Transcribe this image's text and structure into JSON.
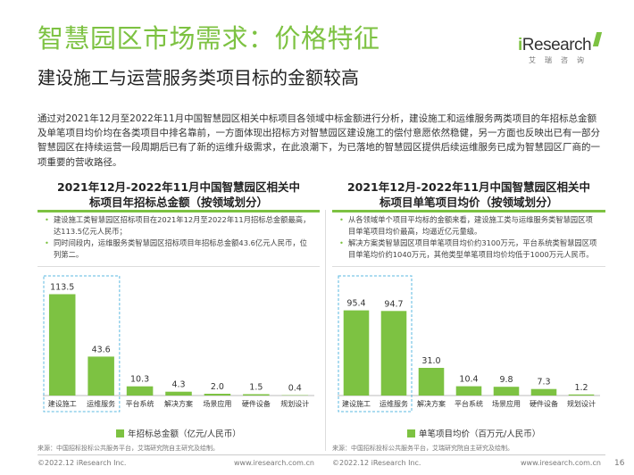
{
  "header": {
    "title": "智慧园区市场需求：价格特征",
    "subtitle": "建设施工与运营服务类项目标的金额较高",
    "logo_main_i": "i",
    "logo_main_rest": "Research",
    "logo_sub": "艾瑞咨询"
  },
  "intro": "通过对2021年12月至2022年11月中国智慧园区相关中标项目各领域中标金额进行分析，建设施工和运维服务两类项目的年招标总金额及单笔项目均价均在各类项目中排名靠前，一方面体现出招标方对智慧园区建设施工的偿付意愿依然稳健，另一方面也反映出已有一部分智慧园区在持续运营一段周期后已有了新的运维升级需求，在此浪潮下，为已落地的智慧园区提供后续运维服务已成为智慧园区厂商的一项重要的营收路径。",
  "panels": [
    {
      "title_line1": "2021年12月-2022年11月中国智慧园区相关中",
      "title_line2": "标项目年招标总金额（按领域划分）",
      "notes": [
        "建设施工类智慧园区招标项目在2021年12月至2022年11月招标总金额最高，达113.5亿元人民币；",
        "同时间段内，运维服务类智慧园区招标项目年招标总金额43.6亿元人民币，位列第二。"
      ],
      "legend": "年招标总金额（亿元/人民币）",
      "source": "来源：中国招标投标公共服务平台，艾瑞研究院自主研究及绘制。"
    },
    {
      "title_line1": "2021年12月-2022年11月中国智慧园区相关中",
      "title_line2": "标项目单笔项目均价（按领域划分）",
      "notes": [
        "从各领域单个项目平均标的金额来看，建设施工类与运维服务类智慧园区项目单笔项目均价最高，均逼近亿元量级。",
        "解决方案类智慧园区项目单笔项目均价约3100万元，平台系统类智慧园区项目单笔均价约1040万元，其他类型单笔项目均价均低于1000万元人民币。"
      ],
      "legend": "单笔项目均价（百万元/人民币）",
      "source": "来源：中国招标投标公共服务平台，艾瑞研究院自主研究及绘制。"
    }
  ],
  "footer": {
    "left_copyright": "©2022.12 iResearch Inc.",
    "left_url": "www.iresearch.com.cn",
    "right_copyright": "©2022.12 iResearch Inc.",
    "right_url": "www.iresearch.com.cn",
    "page_number": "16"
  },
  "colors": {
    "accent": "#7dc242",
    "highlight_box": "#5bb8e0"
  },
  "chart_data": [
    {
      "type": "bar",
      "categories": [
        "建设施工",
        "运维服务",
        "平台系统",
        "解决方案",
        "场景应用",
        "硬件设备",
        "规划设计"
      ],
      "values": [
        113.5,
        43.6,
        10.3,
        4.3,
        2.0,
        1.5,
        0.4
      ],
      "value_labels": [
        "113.5",
        "43.6",
        "10.3",
        "4.3",
        "2.0",
        "1.5",
        "0.4"
      ],
      "series": [
        {
          "name": "年招标总金额（亿元/人民币）",
          "values": [
            113.5,
            43.6,
            10.3,
            4.3,
            2.0,
            1.5,
            0.4
          ]
        }
      ],
      "ylim": [
        0,
        125
      ],
      "highlighted_categories": [
        "建设施工",
        "运维服务"
      ],
      "legend_position": "bottom"
    },
    {
      "type": "bar",
      "categories": [
        "建设施工",
        "运维服务",
        "解决方案",
        "平台系统",
        "场景应用",
        "硬件设备",
        "规划设计"
      ],
      "values": [
        95.4,
        94.7,
        31.0,
        10.4,
        9.8,
        7.3,
        1.2
      ],
      "value_labels": [
        "95.4",
        "94.7",
        "31.0",
        "10.4",
        "9.8",
        "7.3",
        "1.2"
      ],
      "series": [
        {
          "name": "单笔项目均价（百万元/人民币）",
          "values": [
            95.4,
            94.7,
            31.0,
            10.4,
            9.8,
            7.3,
            1.2
          ]
        }
      ],
      "ylim": [
        0,
        125
      ],
      "highlighted_categories": [
        "建设施工",
        "运维服务"
      ],
      "legend_position": "bottom"
    }
  ]
}
